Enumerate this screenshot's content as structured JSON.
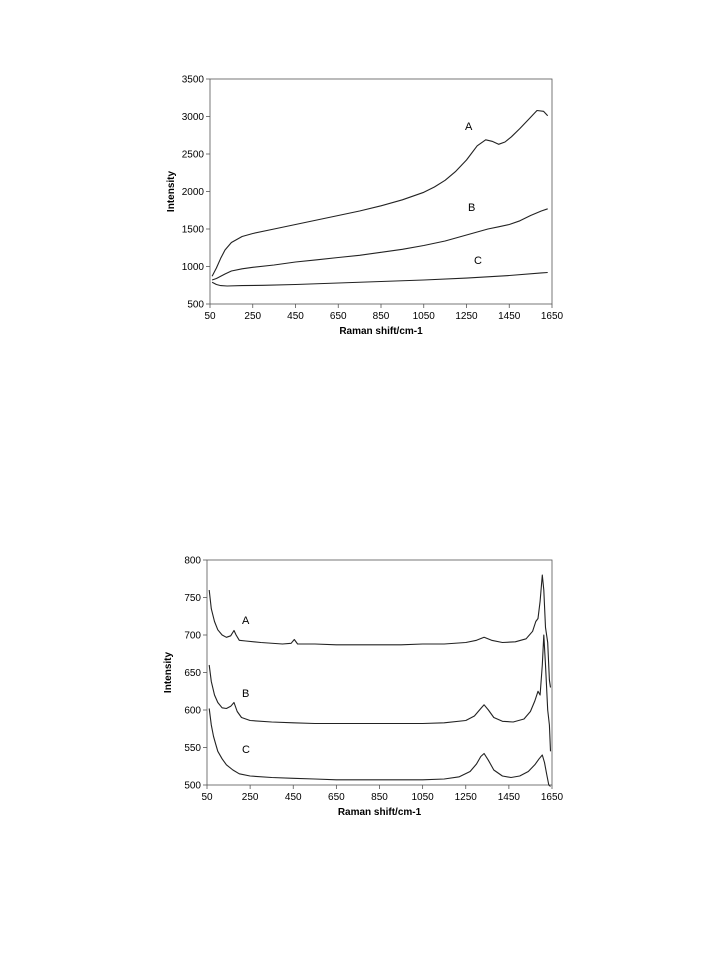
{
  "chart_data": [
    {
      "type": "line",
      "xlabel": "Raman shift/cm-1",
      "ylabel": "Intensity",
      "xlim": [
        50,
        1650
      ],
      "ylim": [
        500,
        3500
      ],
      "xticks": [
        50,
        250,
        450,
        650,
        850,
        1050,
        1250,
        1450,
        1650
      ],
      "yticks": [
        500,
        1000,
        1500,
        2000,
        2500,
        3000,
        3500
      ],
      "grid": false,
      "legend": "none",
      "series": [
        {
          "name": "A",
          "x": [
            60,
            80,
            100,
            120,
            150,
            200,
            250,
            350,
            450,
            550,
            650,
            750,
            850,
            950,
            1050,
            1100,
            1150,
            1200,
            1250,
            1300,
            1340,
            1370,
            1400,
            1430,
            1460,
            1500,
            1540,
            1580,
            1610,
            1630
          ],
          "y": [
            870,
            980,
            1110,
            1220,
            1320,
            1400,
            1440,
            1500,
            1560,
            1620,
            1680,
            1740,
            1810,
            1890,
            1990,
            2060,
            2150,
            2270,
            2420,
            2610,
            2690,
            2670,
            2630,
            2660,
            2730,
            2840,
            2960,
            3080,
            3070,
            3010
          ]
        },
        {
          "name": "B",
          "x": [
            60,
            80,
            100,
            120,
            150,
            200,
            250,
            350,
            450,
            550,
            650,
            750,
            850,
            950,
            1050,
            1150,
            1250,
            1300,
            1350,
            1400,
            1450,
            1500,
            1550,
            1600,
            1630
          ],
          "y": [
            820,
            840,
            870,
            900,
            940,
            970,
            990,
            1020,
            1060,
            1090,
            1120,
            1150,
            1190,
            1230,
            1280,
            1340,
            1420,
            1460,
            1500,
            1530,
            1560,
            1610,
            1680,
            1740,
            1770
          ]
        },
        {
          "name": "C",
          "x": [
            60,
            80,
            100,
            130,
            200,
            300,
            450,
            650,
            850,
            1050,
            1250,
            1450,
            1600,
            1630
          ],
          "y": [
            790,
            760,
            745,
            740,
            745,
            750,
            760,
            780,
            800,
            820,
            845,
            880,
            915,
            920
          ]
        }
      ]
    },
    {
      "type": "line",
      "xlabel": "Raman shift/cm-1",
      "ylabel": "Intensity",
      "xlim": [
        50,
        1650
      ],
      "ylim": [
        500,
        800
      ],
      "xticks": [
        50,
        250,
        450,
        650,
        850,
        1050,
        1250,
        1450,
        1650
      ],
      "yticks": [
        500,
        550,
        600,
        650,
        700,
        750,
        800
      ],
      "grid": false,
      "legend": "none",
      "series": [
        {
          "name": "A",
          "x": [
            60,
            70,
            85,
            100,
            120,
            140,
            160,
            175,
            185,
            200,
            230,
            300,
            400,
            440,
            455,
            470,
            550,
            650,
            750,
            850,
            950,
            1050,
            1150,
            1250,
            1300,
            1335,
            1370,
            1420,
            1480,
            1530,
            1560,
            1575,
            1585,
            1595,
            1605,
            1612,
            1620,
            1630,
            1638,
            1643
          ],
          "y": [
            760,
            735,
            718,
            707,
            700,
            697,
            699,
            706,
            700,
            693,
            692,
            690,
            688,
            689,
            694,
            688,
            688,
            687,
            687,
            687,
            687,
            688,
            688,
            690,
            693,
            697,
            693,
            690,
            691,
            695,
            705,
            718,
            722,
            745,
            780,
            760,
            710,
            690,
            640,
            630
          ]
        },
        {
          "name": "B",
          "x": [
            60,
            70,
            85,
            100,
            120,
            140,
            160,
            175,
            190,
            210,
            250,
            350,
            450,
            550,
            650,
            750,
            850,
            950,
            1050,
            1150,
            1250,
            1290,
            1320,
            1335,
            1355,
            1380,
            1420,
            1470,
            1520,
            1550,
            1570,
            1585,
            1595,
            1605,
            1612,
            1620,
            1630,
            1638,
            1643
          ],
          "y": [
            660,
            638,
            620,
            610,
            603,
            602,
            605,
            610,
            598,
            590,
            586,
            584,
            583,
            582,
            582,
            582,
            582,
            582,
            582,
            583,
            586,
            592,
            602,
            607,
            600,
            590,
            585,
            584,
            588,
            598,
            612,
            625,
            620,
            660,
            700,
            660,
            600,
            580,
            545
          ]
        },
        {
          "name": "C",
          "x": [
            60,
            70,
            80,
            90,
            100,
            120,
            140,
            170,
            200,
            250,
            350,
            450,
            550,
            650,
            750,
            850,
            950,
            1050,
            1150,
            1220,
            1270,
            1300,
            1320,
            1335,
            1355,
            1380,
            1420,
            1460,
            1500,
            1540,
            1570,
            1590,
            1605,
            1615,
            1625,
            1635,
            1643
          ],
          "y": [
            602,
            580,
            565,
            555,
            545,
            535,
            527,
            520,
            515,
            512,
            510,
            509,
            508,
            507,
            507,
            507,
            507,
            507,
            508,
            511,
            518,
            528,
            538,
            542,
            533,
            520,
            512,
            510,
            512,
            518,
            527,
            535,
            540,
            530,
            515,
            500,
            498
          ]
        }
      ]
    }
  ]
}
